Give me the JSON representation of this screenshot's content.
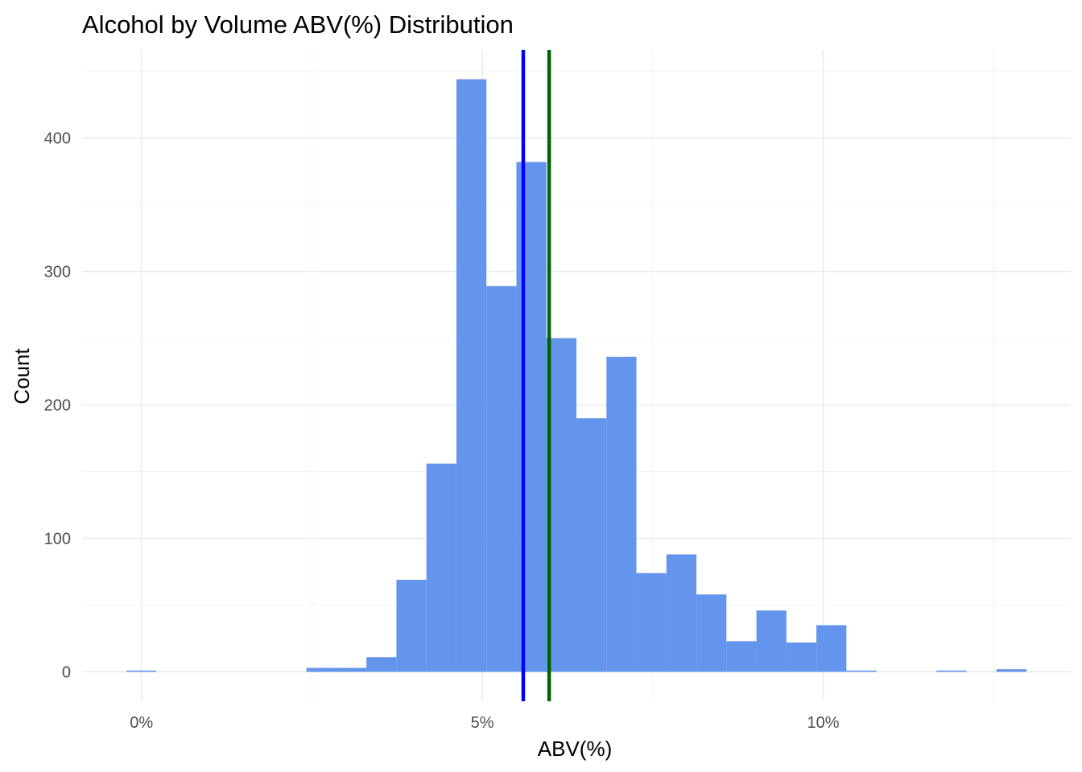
{
  "chart_data": {
    "type": "bar",
    "title": "Alcohol by Volume ABV(%) Distribution",
    "xlabel": "ABV(%)",
    "ylabel": "Count",
    "bin_width": 0.44,
    "bins": [
      {
        "x0": -0.22,
        "x1": 0.22,
        "count": 1
      },
      {
        "x0": 2.42,
        "x1": 2.86,
        "count": 3
      },
      {
        "x0": 2.86,
        "x1": 3.3,
        "count": 3
      },
      {
        "x0": 3.3,
        "x1": 3.74,
        "count": 11
      },
      {
        "x0": 3.74,
        "x1": 4.18,
        "count": 69
      },
      {
        "x0": 4.18,
        "x1": 4.62,
        "count": 156
      },
      {
        "x0": 4.62,
        "x1": 5.06,
        "count": 444
      },
      {
        "x0": 5.06,
        "x1": 5.5,
        "count": 289
      },
      {
        "x0": 5.5,
        "x1": 5.94,
        "count": 382
      },
      {
        "x0": 5.94,
        "x1": 6.38,
        "count": 250
      },
      {
        "x0": 6.38,
        "x1": 6.82,
        "count": 190
      },
      {
        "x0": 6.82,
        "x1": 7.26,
        "count": 236
      },
      {
        "x0": 7.26,
        "x1": 7.7,
        "count": 74
      },
      {
        "x0": 7.7,
        "x1": 8.14,
        "count": 88
      },
      {
        "x0": 8.14,
        "x1": 8.58,
        "count": 58
      },
      {
        "x0": 8.58,
        "x1": 9.02,
        "count": 23
      },
      {
        "x0": 9.02,
        "x1": 9.46,
        "count": 46
      },
      {
        "x0": 9.46,
        "x1": 9.9,
        "count": 22
      },
      {
        "x0": 9.9,
        "x1": 10.34,
        "count": 35
      },
      {
        "x0": 10.34,
        "x1": 10.78,
        "count": 1
      },
      {
        "x0": 11.66,
        "x1": 12.1,
        "count": 1
      },
      {
        "x0": 12.54,
        "x1": 12.98,
        "count": 2
      }
    ],
    "reference_lines": [
      {
        "x": 5.6,
        "color": "#0000ff"
      },
      {
        "x": 5.98,
        "color": "#006400"
      }
    ],
    "bar_color": "#6495ed",
    "xlim": [
      -0.87,
      13.63
    ],
    "ylim": [
      -22,
      466
    ],
    "x_ticks": [
      {
        "value": 0,
        "label": "0%"
      },
      {
        "value": 5,
        "label": "5%"
      },
      {
        "value": 10,
        "label": "10%"
      }
    ],
    "x_minor_ticks": [
      2.5,
      7.5,
      12.5
    ],
    "y_ticks": [
      {
        "value": 0,
        "label": "0"
      },
      {
        "value": 100,
        "label": "100"
      },
      {
        "value": 200,
        "label": "200"
      },
      {
        "value": 300,
        "label": "300"
      },
      {
        "value": 400,
        "label": "400"
      }
    ],
    "y_minor_ticks": [
      50,
      150,
      250,
      350,
      450
    ],
    "grid": true,
    "legend": "none"
  }
}
